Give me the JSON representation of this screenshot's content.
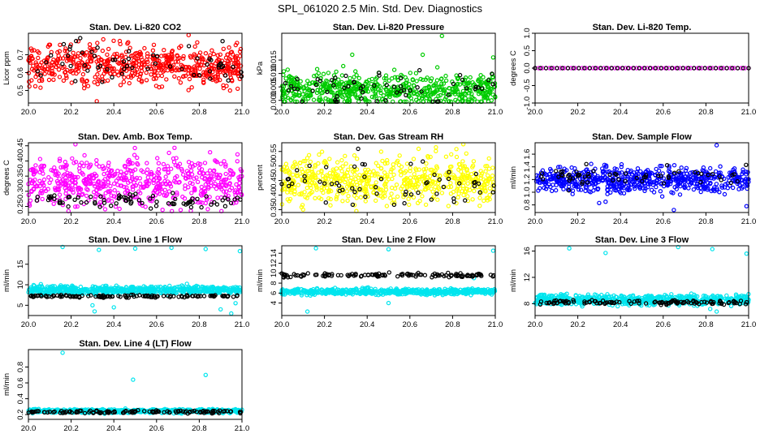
{
  "title": "SPL_061020  2.5 Min. Std. Dev. Diagnostics",
  "chart_data": [
    {
      "type": "scatter",
      "title": "Stan. Dev. Li-820 CO2",
      "ylabel": "Licor ppm",
      "xlim": [
        20.0,
        21.0
      ],
      "ylim": [
        0.43,
        0.82
      ],
      "xticks": [
        20.0,
        20.2,
        20.4,
        20.6,
        20.8,
        21.0
      ],
      "xtick_labels": [
        "20.0",
        "20.2",
        "20.4",
        "20.6",
        "20.8",
        "21.0"
      ],
      "yticks": [
        0.5,
        0.6,
        0.7
      ],
      "ytick_labels": [
        "0.5",
        "0.6",
        "0.7"
      ],
      "color": "#ff0000",
      "series": [
        {
          "name": "main",
          "color": "#ff0000",
          "n": 600,
          "center": 0.64,
          "spread": 0.055,
          "outliers": [
            [
              20.32,
              0.44
            ],
            [
              20.98,
              0.51
            ],
            [
              20.75,
              0.81
            ]
          ]
        },
        {
          "name": "overlay",
          "color": "#000000",
          "n": 60,
          "center": 0.66,
          "spread": 0.06,
          "outliers": []
        }
      ]
    },
    {
      "type": "scatter",
      "title": "Stan. Dev. Li-820 Pressure",
      "ylabel": "kPa",
      "xlim": [
        20.0,
        21.0
      ],
      "ylim": [
        -0.001,
        0.025
      ],
      "xticks": [
        20.0,
        20.2,
        20.4,
        20.6,
        20.8,
        21.0
      ],
      "xtick_labels": [
        "20.0",
        "20.2",
        "20.4",
        "20.6",
        "20.8",
        "21.0"
      ],
      "yticks": [
        0.0,
        0.005,
        0.01,
        0.015
      ],
      "ytick_labels": [
        "0.000",
        "0.005",
        "0.010",
        "0.015"
      ],
      "color": "#00cc00",
      "series": [
        {
          "name": "main",
          "color": "#00cc00",
          "n": 600,
          "center": 0.004,
          "spread": 0.003,
          "outliers": [
            [
              20.75,
              0.024
            ],
            [
              20.33,
              0.017
            ],
            [
              20.66,
              0.017
            ],
            [
              20.99,
              0.016
            ]
          ]
        },
        {
          "name": "overlay",
          "color": "#000000",
          "n": 60,
          "center": 0.005,
          "spread": 0.003,
          "outliers": []
        }
      ]
    },
    {
      "type": "scatter",
      "title": "Stan. Dev. Li-820 Temp.",
      "ylabel": "degrees C",
      "xlim": [
        20.0,
        21.0
      ],
      "ylim": [
        -1.0,
        1.0
      ],
      "xticks": [
        20.0,
        20.2,
        20.4,
        20.6,
        20.8,
        21.0
      ],
      "xtick_labels": [
        "20.0",
        "20.2",
        "20.4",
        "20.6",
        "20.8",
        "21.0"
      ],
      "yticks": [
        -1.0,
        -0.5,
        0.0,
        0.5,
        1.0
      ],
      "ytick_labels": [
        "-1.0",
        "-0.5",
        "0.0",
        "0.5",
        "1.0"
      ],
      "color": "#ff00ff",
      "series": [
        {
          "name": "main",
          "color": "#ff00ff",
          "n": 60,
          "center": 0.0,
          "spread": 0.0,
          "outliers": []
        },
        {
          "name": "overlay",
          "color": "#000000",
          "n": 40,
          "center": 0.0,
          "spread": 0.0,
          "outliers": []
        }
      ]
    },
    {
      "type": "scatter",
      "title": "Stan. Dev. Amb. Box Temp.",
      "ylabel": "degrees C",
      "xlim": [
        20.0,
        21.0
      ],
      "ylim": [
        0.23,
        0.46
      ],
      "xticks": [
        20.0,
        20.2,
        20.4,
        20.6,
        20.8,
        21.0
      ],
      "xtick_labels": [
        "20.0",
        "20.2",
        "20.4",
        "20.6",
        "20.8",
        "21.0"
      ],
      "yticks": [
        0.25,
        0.3,
        0.35,
        0.4,
        0.45
      ],
      "ytick_labels": [
        "0.25",
        "0.30",
        "0.35",
        "0.40",
        "0.45"
      ],
      "color": "#ff00ff",
      "series": [
        {
          "name": "main",
          "color": "#ff00ff",
          "n": 600,
          "center": 0.33,
          "spread": 0.04,
          "outliers": [
            [
              20.22,
              0.455
            ]
          ]
        },
        {
          "name": "overlay",
          "color": "#000000",
          "n": 80,
          "center": 0.27,
          "spread": 0.012,
          "outliers": []
        }
      ]
    },
    {
      "type": "scatter",
      "title": "Stan. Dev. Gas Stream RH",
      "ylabel": "percent",
      "xlim": [
        20.0,
        21.0
      ],
      "ylim": [
        0.34,
        0.58
      ],
      "xticks": [
        20.0,
        20.2,
        20.4,
        20.6,
        20.8,
        21.0
      ],
      "xtick_labels": [
        "20.0",
        "20.2",
        "20.4",
        "20.6",
        "20.8",
        "21.0"
      ],
      "yticks": [
        0.35,
        0.4,
        0.45,
        0.5,
        0.55
      ],
      "ytick_labels": [
        "0.35",
        "0.40",
        "0.45",
        "0.50",
        "0.55"
      ],
      "color": "#ffff00",
      "series": [
        {
          "name": "main",
          "color": "#ffff00",
          "n": 600,
          "center": 0.45,
          "spread": 0.04,
          "outliers": [
            [
              20.85,
              0.575
            ],
            [
              20.1,
              0.35
            ]
          ]
        },
        {
          "name": "overlay",
          "color": "#000000",
          "n": 60,
          "center": 0.44,
          "spread": 0.04,
          "outliers": []
        }
      ]
    },
    {
      "type": "scatter",
      "title": "Stan. Dev. Sample Flow",
      "ylabel": "ml/min",
      "xlim": [
        20.0,
        21.0
      ],
      "ylim": [
        0.68,
        1.78
      ],
      "xticks": [
        20.0,
        20.2,
        20.4,
        20.6,
        20.8,
        21.0
      ],
      "xtick_labels": [
        "20.0",
        "20.2",
        "20.4",
        "20.6",
        "20.8",
        "21.0"
      ],
      "yticks": [
        0.8,
        1.0,
        1.2,
        1.4,
        1.6
      ],
      "ytick_labels": [
        "0.8",
        "1.0",
        "1.2",
        "1.4",
        "1.6"
      ],
      "color": "#0000ff",
      "series": [
        {
          "name": "main",
          "color": "#0000ff",
          "n": 600,
          "center": 1.2,
          "spread": 0.1,
          "outliers": [
            [
              20.3,
              0.83
            ],
            [
              20.33,
              0.85
            ],
            [
              20.65,
              0.72
            ],
            [
              20.99,
              0.78
            ],
            [
              20.85,
              1.74
            ]
          ]
        },
        {
          "name": "overlay",
          "color": "#000000",
          "n": 60,
          "center": 1.25,
          "spread": 0.08,
          "outliers": []
        }
      ]
    },
    {
      "type": "scatter",
      "title": "Stan. Dev. Line 1 Flow",
      "ylabel": "ml/min",
      "xlim": [
        20.0,
        21.0
      ],
      "ylim": [
        2.5,
        19.5
      ],
      "xticks": [
        20.0,
        20.2,
        20.4,
        20.6,
        20.8,
        21.0
      ],
      "xtick_labels": [
        "20.0",
        "20.2",
        "20.4",
        "20.6",
        "20.8",
        "21.0"
      ],
      "yticks": [
        5,
        10,
        15
      ],
      "ytick_labels": [
        "5",
        "10",
        "15"
      ],
      "color": "#00e5ee",
      "series": [
        {
          "name": "main",
          "color": "#00e5ee",
          "n": 600,
          "center": 8.7,
          "spread": 0.5,
          "outliers": [
            [
              20.16,
              19.2
            ],
            [
              20.33,
              18.5
            ],
            [
              20.5,
              18.8
            ],
            [
              20.67,
              19
            ],
            [
              20.83,
              18.7
            ],
            [
              20.99,
              18.2
            ],
            [
              20.31,
              3.5
            ],
            [
              20.3,
              5
            ],
            [
              20.4,
              4.5
            ],
            [
              20.9,
              4
            ],
            [
              20.95,
              3
            ],
            [
              20.97,
              5.5
            ]
          ]
        },
        {
          "name": "overlay",
          "color": "#000000",
          "n": 120,
          "center": 7.2,
          "spread": 0.15,
          "outliers": []
        }
      ]
    },
    {
      "type": "scatter",
      "title": "Stan. Dev. Line 2 Flow",
      "ylabel": "ml/min",
      "xlim": [
        20.0,
        21.0
      ],
      "ylim": [
        1.5,
        15.5
      ],
      "xticks": [
        20.0,
        20.2,
        20.4,
        20.6,
        20.8,
        21.0
      ],
      "xtick_labels": [
        "20.0",
        "20.2",
        "20.4",
        "20.6",
        "20.8",
        "21.0"
      ],
      "yticks": [
        4,
        6,
        8,
        10,
        12,
        14
      ],
      "ytick_labels": [
        "4",
        "6",
        "8",
        "10",
        "12",
        "14"
      ],
      "color": "#00e5ee",
      "series": [
        {
          "name": "main",
          "color": "#00e5ee",
          "n": 600,
          "center": 6.3,
          "spread": 0.3,
          "outliers": [
            [
              20.16,
              15
            ],
            [
              20.5,
              14.8
            ],
            [
              20.99,
              14.5
            ],
            [
              20.12,
              2.3
            ],
            [
              20.5,
              4
            ],
            [
              20.9,
              9
            ]
          ]
        },
        {
          "name": "overlay",
          "color": "#000000",
          "n": 120,
          "center": 9.6,
          "spread": 0.2,
          "outliers": []
        }
      ]
    },
    {
      "type": "scatter",
      "title": "Stan. Dev. Line 3 Flow",
      "ylabel": "ml/min",
      "xlim": [
        20.0,
        21.0
      ],
      "ylim": [
        6.2,
        16.8
      ],
      "xticks": [
        20.0,
        20.2,
        20.4,
        20.6,
        20.8,
        21.0
      ],
      "xtick_labels": [
        "20.0",
        "20.2",
        "20.4",
        "20.6",
        "20.8",
        "21.0"
      ],
      "yticks": [
        8,
        12,
        16
      ],
      "ytick_labels": [
        "8",
        "12",
        "16"
      ],
      "color": "#00e5ee",
      "series": [
        {
          "name": "main",
          "color": "#00e5ee",
          "n": 600,
          "center": 8.6,
          "spread": 0.4,
          "outliers": [
            [
              20.16,
              16.4
            ],
            [
              20.33,
              15.7
            ],
            [
              20.67,
              16.6
            ],
            [
              20.83,
              16.3
            ],
            [
              20.99,
              15.6
            ],
            [
              20.85,
              6.8
            ],
            [
              20.82,
              7.2
            ]
          ]
        },
        {
          "name": "overlay",
          "color": "#000000",
          "n": 120,
          "center": 8.2,
          "spread": 0.15,
          "outliers": []
        }
      ]
    },
    {
      "type": "scatter",
      "title": "Stan. Dev. Line 4 (LT) Flow",
      "ylabel": "ml/min",
      "xlim": [
        20.0,
        21.0
      ],
      "ylim": [
        0.14,
        1.02
      ],
      "xticks": [
        20.0,
        20.2,
        20.4,
        20.6,
        20.8,
        21.0
      ],
      "xtick_labels": [
        "20.0",
        "20.2",
        "20.4",
        "20.6",
        "20.8",
        "21.0"
      ],
      "yticks": [
        0.2,
        0.4,
        0.6,
        0.8
      ],
      "ytick_labels": [
        "0.2",
        "0.4",
        "0.6",
        "0.8"
      ],
      "color": "#00e5ee",
      "series": [
        {
          "name": "main",
          "color": "#00e5ee",
          "n": 600,
          "center": 0.245,
          "spread": 0.012,
          "outliers": [
            [
              20.16,
              0.98
            ],
            [
              20.49,
              0.64
            ],
            [
              20.83,
              0.7
            ]
          ]
        },
        {
          "name": "overlay",
          "color": "#000000",
          "n": 120,
          "center": 0.235,
          "spread": 0.01,
          "outliers": []
        }
      ]
    }
  ]
}
